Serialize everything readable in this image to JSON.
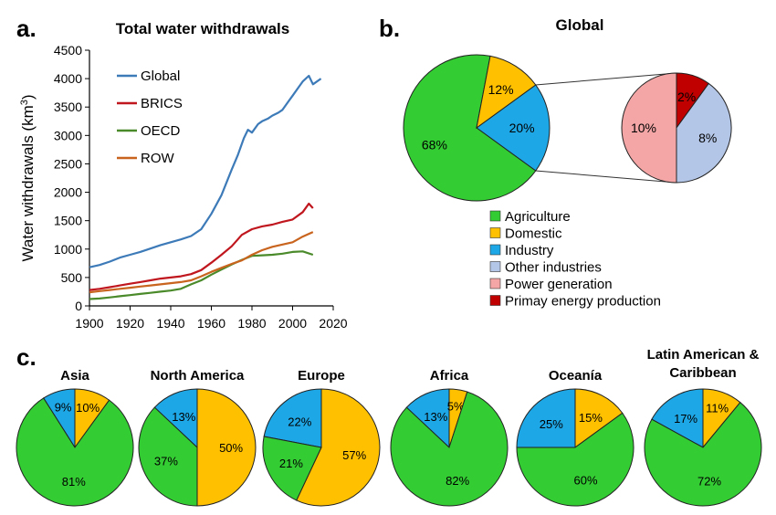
{
  "panels": {
    "a": "a.",
    "b": "b.",
    "c": "c."
  },
  "colors": {
    "Global": "#3d7ab8",
    "BRICS": "#c0161e",
    "OECD": "#4a8a2a",
    "ROW": "#c8641e",
    "Agriculture": "#33cc33",
    "Domestic": "#ffc000",
    "Industry": "#1ea7e6",
    "Other industries": "#b4c6e7",
    "Power generation": "#f4a6a6",
    "Primay energy production": "#c00000"
  },
  "chart_data": [
    {
      "type": "line",
      "title": "Total water withdrawals",
      "xlabel": "",
      "ylabel": "Water withdrawals (km",
      "ylabel_sup": "3",
      "ylabel_tail": ")",
      "xlim": [
        1900,
        2020
      ],
      "ylim": [
        0,
        4500
      ],
      "xticks": [
        1900,
        1920,
        1940,
        1960,
        1980,
        2000,
        2020
      ],
      "yticks": [
        0,
        500,
        1000,
        1500,
        2000,
        2500,
        3000,
        3500,
        4000,
        4500
      ],
      "legend_position": "top-left",
      "series": [
        {
          "name": "Global",
          "x": [
            1900,
            1905,
            1910,
            1915,
            1920,
            1925,
            1930,
            1935,
            1940,
            1945,
            1950,
            1955,
            1960,
            1965,
            1970,
            1973,
            1976,
            1978,
            1980,
            1983,
            1985,
            1988,
            1990,
            1993,
            1995,
            1998,
            2000,
            2003,
            2005,
            2008,
            2010,
            2014
          ],
          "y": [
            680,
            720,
            780,
            850,
            900,
            950,
            1010,
            1070,
            1120,
            1170,
            1230,
            1350,
            1620,
            1950,
            2400,
            2650,
            2950,
            3100,
            3050,
            3200,
            3250,
            3300,
            3350,
            3400,
            3450,
            3600,
            3700,
            3850,
            3950,
            4050,
            3900,
            4000
          ]
        },
        {
          "name": "BRICS",
          "x": [
            1900,
            1905,
            1910,
            1915,
            1920,
            1925,
            1930,
            1935,
            1940,
            1945,
            1950,
            1955,
            1960,
            1965,
            1970,
            1975,
            1980,
            1985,
            1990,
            1995,
            2000,
            2005,
            2008,
            2010
          ],
          "y": [
            280,
            300,
            330,
            360,
            390,
            420,
            450,
            480,
            500,
            520,
            560,
            630,
            760,
            900,
            1050,
            1250,
            1350,
            1400,
            1430,
            1480,
            1520,
            1650,
            1800,
            1720
          ]
        },
        {
          "name": "OECD",
          "x": [
            1900,
            1905,
            1910,
            1915,
            1920,
            1925,
            1930,
            1935,
            1940,
            1945,
            1950,
            1955,
            1960,
            1965,
            1970,
            1975,
            1980,
            1985,
            1990,
            1995,
            2000,
            2005,
            2010
          ],
          "y": [
            120,
            130,
            150,
            170,
            190,
            210,
            230,
            250,
            270,
            300,
            380,
            450,
            550,
            640,
            730,
            810,
            880,
            890,
            900,
            920,
            950,
            960,
            900
          ]
        },
        {
          "name": "ROW",
          "x": [
            1900,
            1905,
            1910,
            1915,
            1920,
            1925,
            1930,
            1935,
            1940,
            1945,
            1950,
            1955,
            1960,
            1965,
            1970,
            1975,
            1980,
            1985,
            1990,
            1995,
            2000,
            2005,
            2010
          ],
          "y": [
            240,
            260,
            280,
            300,
            320,
            340,
            360,
            380,
            400,
            420,
            450,
            520,
            600,
            670,
            740,
            800,
            900,
            980,
            1040,
            1080,
            1120,
            1220,
            1300
          ]
        }
      ]
    },
    {
      "type": "pie",
      "title": "Global",
      "categories": [
        "Agriculture",
        "Domestic",
        "Industry"
      ],
      "values": [
        68,
        12,
        20
      ],
      "labels": [
        "68%",
        "12%",
        "20%"
      ],
      "legend_position": "bottom",
      "legend": [
        "Agriculture",
        "Domestic",
        "Industry",
        "Other industries",
        "Power generation",
        "Primay energy production"
      ],
      "breakdown": {
        "of": "Industry",
        "categories": [
          "Power generation",
          "Primay energy production",
          "Other industries"
        ],
        "values": [
          10,
          2,
          8
        ],
        "labels": [
          "10%",
          "2%",
          "8%"
        ]
      }
    },
    {
      "type": "pie",
      "title": "Asia",
      "categories": [
        "Agriculture",
        "Domestic",
        "Industry"
      ],
      "values": [
        81,
        10,
        9
      ],
      "labels": [
        "81%",
        "10%",
        "9%"
      ]
    },
    {
      "type": "pie",
      "title": "North America",
      "categories": [
        "Agriculture",
        "Domestic",
        "Industry"
      ],
      "values": [
        37,
        50,
        13
      ],
      "labels": [
        "37%",
        "50%",
        "13%"
      ]
    },
    {
      "type": "pie",
      "title": "Europe",
      "categories": [
        "Agriculture",
        "Domestic",
        "Industry"
      ],
      "values": [
        21,
        57,
        22
      ],
      "labels": [
        "21%",
        "57%",
        "22%"
      ]
    },
    {
      "type": "pie",
      "title": "Africa",
      "categories": [
        "Agriculture",
        "Domestic",
        "Industry"
      ],
      "values": [
        82,
        5,
        13
      ],
      "labels": [
        "82%",
        "5%",
        "13%"
      ]
    },
    {
      "type": "pie",
      "title": "Oceanía",
      "categories": [
        "Agriculture",
        "Domestic",
        "Industry"
      ],
      "values": [
        60,
        15,
        25
      ],
      "labels": [
        "60%",
        "15%",
        "25%"
      ]
    },
    {
      "type": "pie",
      "title": "Latin American & Caribbean",
      "title_lines": [
        "Latin American &",
        "Caribbean"
      ],
      "categories": [
        "Agriculture",
        "Domestic",
        "Industry"
      ],
      "values": [
        72,
        11,
        17
      ],
      "labels": [
        "72%",
        "11%",
        "17%"
      ]
    }
  ]
}
